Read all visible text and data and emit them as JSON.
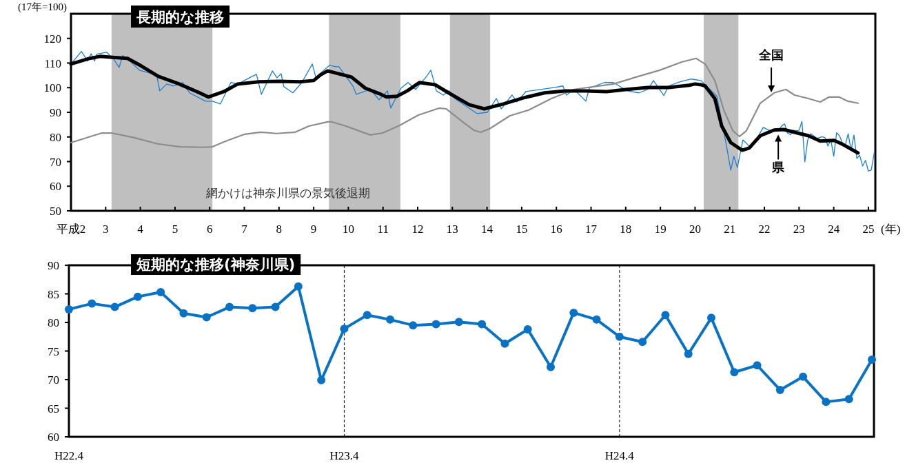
{
  "chart_data": [
    {
      "type": "line",
      "title": "長期的な推移",
      "ylabel": "(17年=100)",
      "xlabel": "(年)",
      "xlim": [
        2,
        25.2
      ],
      "ylim": [
        50,
        130
      ],
      "yticks": [
        50,
        60,
        70,
        80,
        90,
        100,
        110,
        120
      ],
      "xticks": [
        {
          "value": 2,
          "label": "平成2"
        },
        3,
        4,
        5,
        6,
        7,
        8,
        9,
        10,
        11,
        12,
        13,
        14,
        15,
        16,
        17,
        18,
        19,
        20,
        21,
        22,
        23,
        24,
        25
      ],
      "bands": [
        {
          "axis": "x",
          "from": 3.17,
          "to": 6.08,
          "color": "#bfbfbf"
        },
        {
          "axis": "x",
          "from": 9.44,
          "to": 11.5,
          "color": "#bfbfbf"
        },
        {
          "axis": "x",
          "from": 12.93,
          "to": 14.09,
          "color": "#bfbfbf"
        },
        {
          "axis": "x",
          "from": 20.25,
          "to": 21.25,
          "color": "#bfbfbf"
        }
      ],
      "series": [
        {
          "color": "#1a7fd4",
          "x": [
            2.0,
            2.3,
            2.48,
            2.58,
            2.68,
            2.74,
            3.03,
            3.23,
            3.39,
            3.49,
            3.67,
            3.97,
            4.47,
            4.56,
            4.76,
            4.96,
            5.22,
            5.42,
            5.88,
            6.08,
            6.31,
            6.61,
            6.81,
            7.15,
            7.35,
            7.49,
            7.81,
            7.94,
            8.06,
            8.14,
            8.4,
            8.66,
            8.96,
            9.06,
            9.46,
            9.63,
            9.73,
            10.13,
            10.23,
            10.63,
            10.89,
            11.13,
            11.22,
            11.52,
            11.72,
            11.94,
            12.24,
            12.38,
            12.54,
            12.74,
            12.91,
            13.07,
            13.71,
            14.01,
            14.27,
            14.41,
            14.72,
            14.86,
            15.12,
            15.96,
            16.19,
            16.29,
            16.51,
            16.85,
            16.95,
            17.39,
            17.65,
            18.04,
            18.38,
            18.64,
            18.8,
            19.1,
            19.24,
            19.57,
            19.89,
            20.17,
            20.43,
            20.63,
            20.89,
            21.03,
            21.12,
            21.22,
            21.38,
            21.62,
            21.97,
            22.16,
            22.25,
            22.333,
            22.417,
            22.5,
            22.583,
            22.667,
            22.75,
            22.833,
            22.917,
            23.0,
            23.083,
            23.167,
            23.25,
            23.333,
            23.417,
            23.5,
            23.583,
            23.667,
            23.75,
            23.833,
            23.917,
            24.0,
            24.083,
            24.167,
            24.25,
            24.333,
            24.417,
            24.5,
            24.583,
            24.667,
            24.75,
            24.833,
            24.917,
            25.0,
            25.083,
            25.167
          ],
          "values": [
            109.6,
            114.7,
            110.8,
            113.8,
            110.8,
            113.6,
            114.4,
            111.6,
            108.2,
            113.0,
            111.3,
            107.1,
            105.2,
            98.7,
            101.5,
            100.7,
            102.1,
            97.9,
            94.5,
            94.5,
            93.4,
            102.1,
            101.5,
            104.0,
            105.4,
            97.3,
            106.8,
            104.0,
            105.7,
            100.4,
            97.9,
            102.1,
            109.6,
            104.3,
            109.1,
            108.5,
            108.5,
            100.7,
            97.3,
            99.3,
            95.1,
            98.7,
            91.7,
            99.8,
            102.1,
            99.3,
            104.3,
            107.1,
            98.7,
            97.0,
            98.7,
            95.6,
            89.5,
            90.0,
            95.6,
            91.4,
            97.0,
            94.2,
            98.4,
            100.1,
            100.7,
            97.0,
            99.3,
            94.5,
            99.8,
            102.1,
            102.1,
            98.7,
            97.9,
            99.3,
            102.9,
            96.8,
            100.7,
            102.4,
            103.5,
            102.9,
            99.3,
            96.5,
            77.7,
            66.5,
            72.1,
            67.6,
            78.8,
            75.5,
            83.9,
            82.5,
            82.3,
            83.3,
            82.7,
            84.5,
            85.3,
            81.6,
            80.9,
            82.7,
            82.5,
            82.7,
            86.3,
            69.9,
            78.9,
            81.3,
            80.5,
            79.5,
            79.7,
            80.1,
            79.7,
            76.3,
            78.8,
            72.2,
            81.7,
            80.5,
            77.5,
            76.6,
            81.3,
            74.5,
            80.8,
            71.3,
            72.5,
            68.2,
            70.5,
            66.1,
            66.6,
            73.5
          ]
        },
        {
          "color": "#8c8c8c",
          "x": [
            2.0,
            2.89,
            3.17,
            3.83,
            4.49,
            5.16,
            5.82,
            6.08,
            6.47,
            7.01,
            7.47,
            7.94,
            8.46,
            8.86,
            9.4,
            9.53,
            9.93,
            10.63,
            10.99,
            11.48,
            12.02,
            12.62,
            12.82,
            13.33,
            13.61,
            13.81,
            14.07,
            14.66,
            15.2,
            15.86,
            16.51,
            17.65,
            18.3,
            18.98,
            19.63,
            20.03,
            20.29,
            20.57,
            20.83,
            21.09,
            21.28,
            21.48,
            21.88,
            22.28,
            22.62,
            22.87,
            23.27,
            23.61,
            23.87,
            24.15,
            24.41,
            24.7
          ],
          "values": [
            77.7,
            81.6,
            81.6,
            79.7,
            77.2,
            76.0,
            75.8,
            76.0,
            78.3,
            81.1,
            81.9,
            81.4,
            81.9,
            84.4,
            86.1,
            86.1,
            84.4,
            80.8,
            81.6,
            84.7,
            88.9,
            91.7,
            91.4,
            85.8,
            82.8,
            81.9,
            83.3,
            88.6,
            90.9,
            95.6,
            99.3,
            101.5,
            104.3,
            107.1,
            110.5,
            111.9,
            109.6,
            102.9,
            90.9,
            82.5,
            80.2,
            82.5,
            93.7,
            97.9,
            99.3,
            97.0,
            95.6,
            94.2,
            96.2,
            96.2,
            94.5,
            93.7
          ]
        },
        {
          "color": "#000000",
          "x": [
            2.0,
            2.54,
            2.84,
            3.13,
            3.63,
            4.03,
            4.52,
            5.12,
            5.71,
            5.96,
            6.41,
            6.81,
            7.41,
            8.0,
            8.6,
            9.0,
            9.2,
            9.4,
            10.09,
            10.49,
            10.89,
            11.1,
            11.4,
            11.7,
            12.05,
            12.5,
            12.89,
            13.48,
            13.92,
            14.47,
            15.06,
            15.66,
            16.25,
            16.85,
            17.45,
            18.04,
            18.64,
            19.24,
            19.83,
            20.0,
            20.17,
            20.29,
            20.57,
            20.77,
            21.03,
            21.36,
            21.56,
            21.88,
            22.28,
            22.56,
            22.95,
            23.27,
            23.61,
            24.01,
            24.27,
            24.7
          ],
          "values": [
            109.6,
            111.9,
            112.7,
            112.4,
            111.9,
            108.8,
            104.6,
            101.5,
            97.9,
            96.2,
            98.4,
            101.5,
            102.4,
            102.6,
            102.4,
            102.9,
            105.2,
            106.8,
            104.3,
            99.8,
            97.6,
            96.2,
            96.5,
            98.7,
            102.1,
            101.2,
            97.9,
            93.1,
            91.4,
            93.4,
            95.9,
            97.9,
            98.7,
            98.7,
            98.4,
            99.3,
            100.1,
            100.1,
            101.0,
            101.5,
            101.2,
            100.7,
            95.6,
            84.4,
            77.7,
            74.6,
            75.5,
            80.5,
            82.8,
            83.0,
            81.6,
            80.5,
            78.3,
            78.6,
            76.9,
            73.5
          ]
        }
      ],
      "annotations": [
        "網かけは神奈川県の景気後退期",
        {
          "text": "全国",
          "x": 22.2,
          "y": 97.0
        },
        {
          "text": "県",
          "x": 22.4,
          "y": 82.6
        }
      ]
    },
    {
      "type": "line",
      "title": "短期的な推移(神奈川県)",
      "marker": "circle",
      "ylim": [
        60,
        90
      ],
      "yticks": [
        60,
        65,
        70,
        75,
        80,
        85,
        90
      ],
      "categories": [
        "H22.4",
        null,
        null,
        null,
        null,
        null,
        null,
        null,
        null,
        null,
        null,
        null,
        "H23.4",
        null,
        null,
        null,
        null,
        null,
        null,
        null,
        null,
        null,
        null,
        null,
        "H24.4",
        null,
        null,
        null,
        null,
        null,
        null,
        null,
        null,
        null,
        null,
        null
      ],
      "series": [
        {
          "color": "#0a72c4",
          "values": [
            82.3,
            83.3,
            82.7,
            84.5,
            85.3,
            81.6,
            80.9,
            82.7,
            82.5,
            82.7,
            86.3,
            69.9,
            78.9,
            81.3,
            80.5,
            79.5,
            79.7,
            80.1,
            79.7,
            76.3,
            78.8,
            72.2,
            81.7,
            80.5,
            77.5,
            76.6,
            81.3,
            74.5,
            80.8,
            71.3,
            72.5,
            68.2,
            70.5,
            66.1,
            66.6,
            73.5
          ]
        }
      ],
      "ref_lines": [
        {
          "axis": "x",
          "value": "H23.4",
          "line_style": "dashed",
          "color": "#000000"
        },
        {
          "axis": "x",
          "value": "H24.4",
          "line_style": "dashed",
          "color": "#000000"
        }
      ]
    }
  ]
}
